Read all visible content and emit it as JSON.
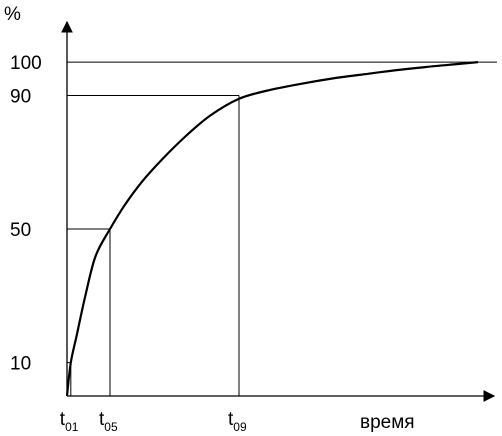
{
  "chart_data": {
    "type": "line",
    "ylabel": "%",
    "xlabel": "время",
    "y_ticks": [
      {
        "label": "100",
        "value": 100
      },
      {
        "label": "90",
        "value": 90
      },
      {
        "label": "50",
        "value": 50
      },
      {
        "label": "10",
        "value": 10
      }
    ],
    "x_markers": [
      {
        "base": "t",
        "sub": "01",
        "y_ref": 10
      },
      {
        "base": "t",
        "sub": "05",
        "y_ref": 50
      },
      {
        "base": "t",
        "sub": "09",
        "y_ref": 90
      }
    ],
    "series": [
      {
        "x": [
          0,
          0.4,
          1,
          2,
          3,
          4.5,
          6,
          7.8,
          10,
          12.5,
          15,
          18,
          21,
          24.5,
          28,
          31.5,
          34.5,
          37.5,
          40.5,
          43
        ],
        "y": [
          0,
          10,
          18,
          31,
          42,
          50,
          57,
          64,
          71,
          78,
          84,
          89,
          91.5,
          93.5,
          95.2,
          96.5,
          97.6,
          98.5,
          99.3,
          100
        ]
      }
    ],
    "x_markers_x": [
      0.4,
      4.5,
      18
    ],
    "xlim": [
      0,
      45
    ],
    "ylim": [
      0,
      112
    ]
  }
}
